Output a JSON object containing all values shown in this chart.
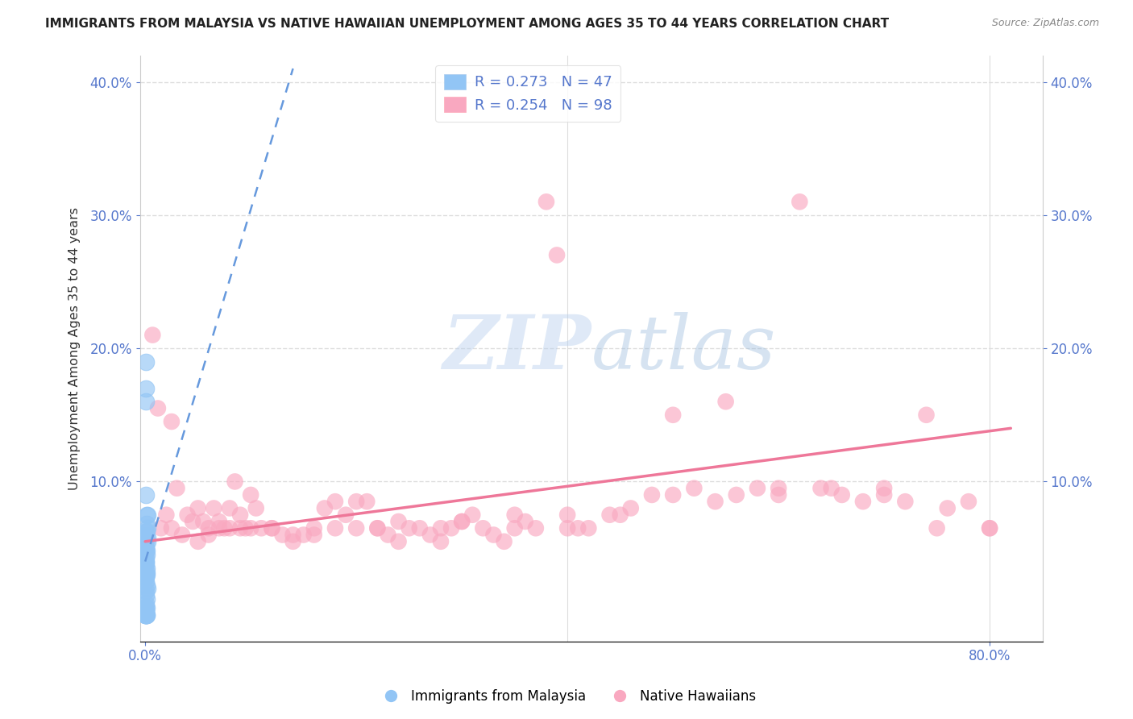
{
  "title": "IMMIGRANTS FROM MALAYSIA VS NATIVE HAWAIIAN UNEMPLOYMENT AMONG AGES 35 TO 44 YEARS CORRELATION CHART",
  "source": "Source: ZipAtlas.com",
  "xlim": [
    -0.005,
    0.85
  ],
  "ylim": [
    -0.02,
    0.42
  ],
  "ylabel": "Unemployment Among Ages 35 to 44 years",
  "watermark_zip": "ZIP",
  "watermark_atlas": "atlas",
  "legend_label1": "Immigrants from Malaysia",
  "legend_label2": "Native Hawaiians",
  "r1": 0.273,
  "n1": 47,
  "r2": 0.254,
  "n2": 98,
  "color_blue": "#92C5F5",
  "color_pink": "#F9A8C0",
  "trend_blue_color": "#6699DD",
  "trend_pink_color": "#EE7799",
  "blue_x": [
    0.0005,
    0.001,
    0.001,
    0.0015,
    0.002,
    0.0005,
    0.001,
    0.0015,
    0.002,
    0.0025,
    0.0003,
    0.0007,
    0.001,
    0.0013,
    0.0017,
    0.0008,
    0.0012,
    0.0018,
    0.0004,
    0.0009,
    0.0006,
    0.001,
    0.0014,
    0.0005,
    0.0011,
    0.0016,
    0.0003,
    0.0008,
    0.0013,
    0.0019,
    0.0007,
    0.001,
    0.0015,
    0.0005,
    0.0009,
    0.0012,
    0.0004,
    0.0007,
    0.001,
    0.0006,
    0.0008,
    0.0003,
    0.0011,
    0.0014,
    0.0006,
    0.0009,
    0.0002
  ],
  "blue_y": [
    0.19,
    0.17,
    0.16,
    0.075,
    0.075,
    0.09,
    0.062,
    0.068,
    0.065,
    0.055,
    0.05,
    0.048,
    0.052,
    0.045,
    0.048,
    0.06,
    0.063,
    0.058,
    0.04,
    0.042,
    0.04,
    0.038,
    0.035,
    0.03,
    0.03,
    0.032,
    0.025,
    0.028,
    0.022,
    0.02,
    0.018,
    0.015,
    0.012,
    0.008,
    0.006,
    0.005,
    0.003,
    0.002,
    0.001,
    0.0,
    0.0,
    0.0,
    0.0,
    0.0,
    0.0,
    0.0,
    0.0
  ],
  "pink_x": [
    0.007,
    0.012,
    0.02,
    0.025,
    0.03,
    0.04,
    0.045,
    0.05,
    0.055,
    0.06,
    0.065,
    0.07,
    0.075,
    0.08,
    0.085,
    0.09,
    0.095,
    0.1,
    0.105,
    0.11,
    0.12,
    0.13,
    0.14,
    0.15,
    0.16,
    0.17,
    0.18,
    0.19,
    0.2,
    0.21,
    0.22,
    0.23,
    0.24,
    0.25,
    0.26,
    0.27,
    0.28,
    0.29,
    0.3,
    0.31,
    0.32,
    0.33,
    0.34,
    0.35,
    0.36,
    0.37,
    0.38,
    0.39,
    0.4,
    0.41,
    0.42,
    0.44,
    0.46,
    0.48,
    0.5,
    0.52,
    0.54,
    0.56,
    0.58,
    0.6,
    0.62,
    0.64,
    0.66,
    0.68,
    0.7,
    0.72,
    0.74,
    0.76,
    0.78,
    0.8,
    0.015,
    0.025,
    0.035,
    0.05,
    0.06,
    0.07,
    0.08,
    0.09,
    0.1,
    0.12,
    0.14,
    0.16,
    0.18,
    0.2,
    0.22,
    0.24,
    0.28,
    0.3,
    0.35,
    0.4,
    0.45,
    0.5,
    0.55,
    0.6,
    0.65,
    0.7,
    0.75,
    0.8
  ],
  "pink_y": [
    0.21,
    0.155,
    0.075,
    0.145,
    0.095,
    0.075,
    0.07,
    0.08,
    0.07,
    0.06,
    0.08,
    0.07,
    0.065,
    0.065,
    0.1,
    0.075,
    0.065,
    0.09,
    0.08,
    0.065,
    0.065,
    0.06,
    0.055,
    0.06,
    0.065,
    0.08,
    0.085,
    0.075,
    0.085,
    0.085,
    0.065,
    0.06,
    0.055,
    0.065,
    0.065,
    0.06,
    0.055,
    0.065,
    0.07,
    0.075,
    0.065,
    0.06,
    0.055,
    0.065,
    0.07,
    0.065,
    0.31,
    0.27,
    0.075,
    0.065,
    0.065,
    0.075,
    0.08,
    0.09,
    0.09,
    0.095,
    0.085,
    0.09,
    0.095,
    0.09,
    0.31,
    0.095,
    0.09,
    0.085,
    0.09,
    0.085,
    0.15,
    0.08,
    0.085,
    0.065,
    0.065,
    0.065,
    0.06,
    0.055,
    0.065,
    0.065,
    0.08,
    0.065,
    0.065,
    0.065,
    0.06,
    0.06,
    0.065,
    0.065,
    0.065,
    0.07,
    0.065,
    0.07,
    0.075,
    0.065,
    0.075,
    0.15,
    0.16,
    0.095,
    0.095,
    0.095,
    0.065,
    0.065
  ],
  "pink_trend_x0": 0.0,
  "pink_trend_x1": 0.82,
  "pink_trend_y0": 0.055,
  "pink_trend_y1": 0.14,
  "blue_trend_x0": 0.0,
  "blue_trend_x1": 0.14,
  "blue_trend_y0": 0.04,
  "blue_trend_y1": 0.41,
  "ytick_labels": [
    "10.0%",
    "20.0%",
    "30.0%",
    "40.0%"
  ],
  "ytick_vals": [
    0.1,
    0.2,
    0.3,
    0.4
  ],
  "xtick_left_label": "0.0%",
  "xtick_right_label": "80.0%",
  "xtick_left_val": 0.0,
  "xtick_right_val": 0.8,
  "background_color": "#FFFFFF",
  "grid_color": "#DDDDDD",
  "tick_color": "#5577CC",
  "title_fontsize": 11,
  "source_fontsize": 9
}
